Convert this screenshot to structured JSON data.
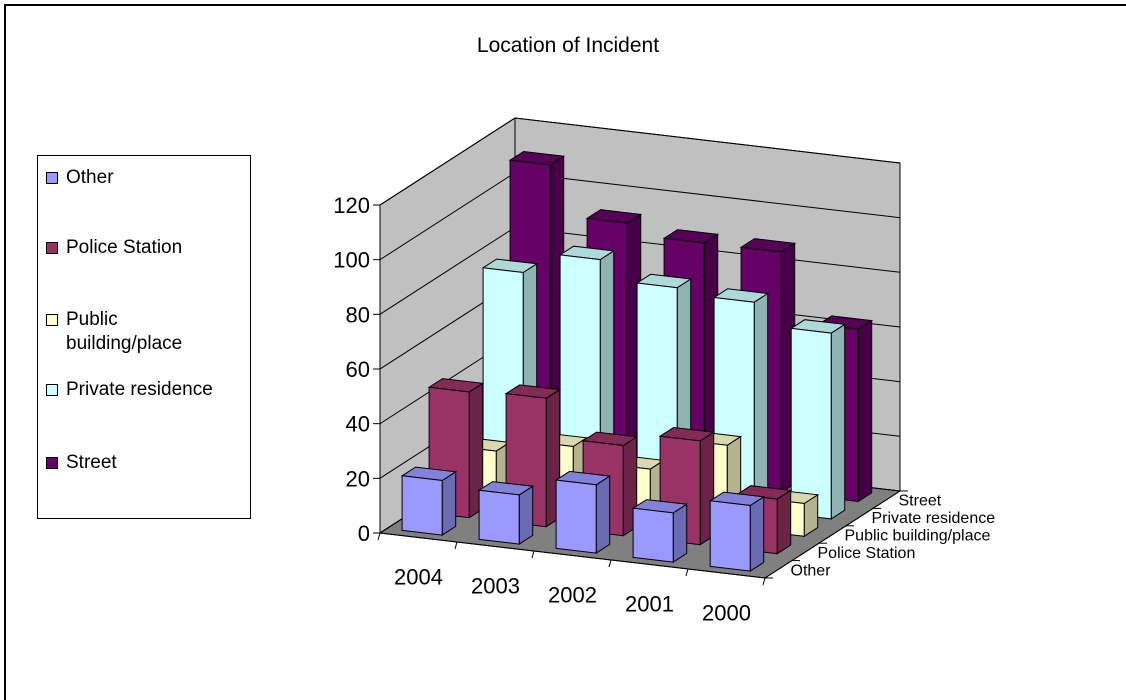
{
  "chart_data": {
    "type": "bar",
    "subtype": "3d-column",
    "title": "Location of Incident",
    "categories": [
      "2004",
      "2003",
      "2002",
      "2001",
      "2000"
    ],
    "series": [
      {
        "name": "Other",
        "color": "#9999ff",
        "values": [
          20,
          18,
          25,
          18,
          24
        ]
      },
      {
        "name": "Police Station",
        "color": "#993366",
        "values": [
          46,
          47,
          33,
          38,
          20
        ]
      },
      {
        "name": "Public building/place",
        "color": "#ffffcc",
        "values": [
          18,
          23,
          18,
          30,
          12
        ]
      },
      {
        "name": "Private residence",
        "color": "#ccffff",
        "values": [
          77,
          85,
          78,
          76,
          68
        ]
      },
      {
        "name": "Street",
        "color": "#660066",
        "values": [
          110,
          92,
          88,
          88,
          63
        ]
      }
    ],
    "depth_axis_labels": [
      "Other",
      "Police Station",
      "Public building/place",
      "Private residence",
      "Street"
    ],
    "y_ticks": [
      "0",
      "20",
      "40",
      "60",
      "80",
      "100",
      "120"
    ],
    "ylim": [
      0,
      120
    ],
    "legend_position": "left",
    "grid": true
  }
}
